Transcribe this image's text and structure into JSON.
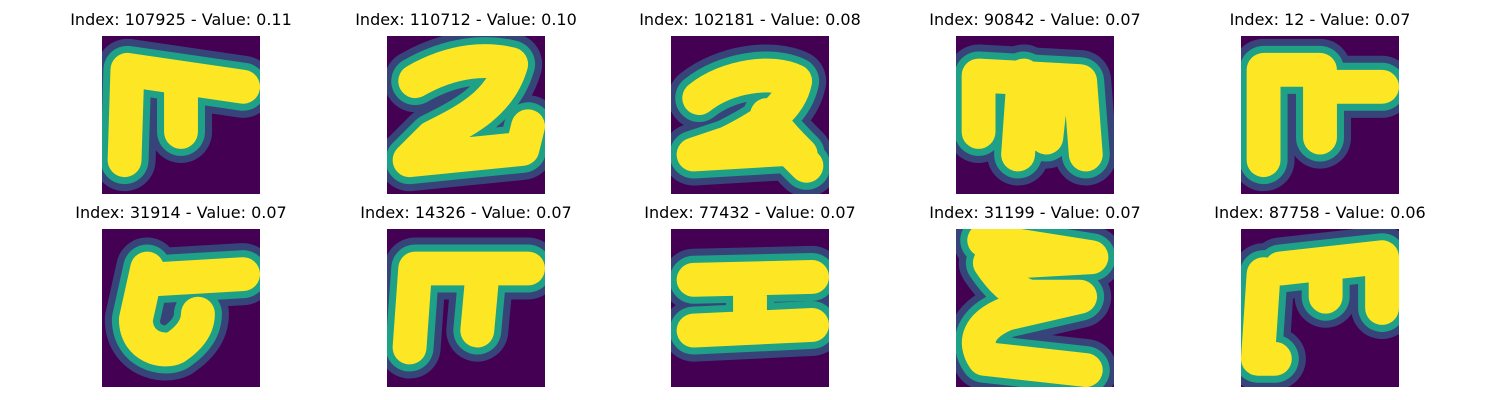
{
  "figure": {
    "panels": [
      {
        "index": "107925",
        "value": "0.11",
        "title": "Index: 107925 - Value: 0.11",
        "glyph": "handwritten-digit-image"
      },
      {
        "index": "110712",
        "value": "0.10",
        "title": "Index: 110712 - Value: 0.10",
        "glyph": "handwritten-digit-image"
      },
      {
        "index": "102181",
        "value": "0.08",
        "title": "Index: 102181 - Value: 0.08",
        "glyph": "handwritten-digit-image"
      },
      {
        "index": "90842",
        "value": "0.07",
        "title": "Index: 90842 - Value: 0.07",
        "glyph": "handwritten-digit-image"
      },
      {
        "index": "12",
        "value": "0.07",
        "title": "Index: 12 - Value: 0.07",
        "glyph": "handwritten-digit-image"
      },
      {
        "index": "31914",
        "value": "0.07",
        "title": "Index: 31914 - Value: 0.07",
        "glyph": "handwritten-digit-image"
      },
      {
        "index": "14326",
        "value": "0.07",
        "title": "Index: 14326 - Value: 0.07",
        "glyph": "handwritten-digit-image"
      },
      {
        "index": "77432",
        "value": "0.07",
        "title": "Index: 77432 - Value: 0.07",
        "glyph": "handwritten-digit-image"
      },
      {
        "index": "31199",
        "value": "0.07",
        "title": "Index: 31199 - Value: 0.07",
        "glyph": "handwritten-digit-image"
      },
      {
        "index": "87758",
        "value": "0.06",
        "title": "Index: 87758 - Value: 0.06",
        "glyph": "handwritten-digit-image"
      }
    ]
  },
  "colors": {
    "background": "#440154",
    "foreground": "#fde725",
    "edge": "#1fa187"
  }
}
